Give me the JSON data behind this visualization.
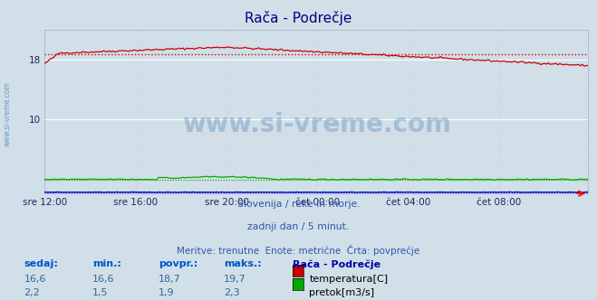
{
  "title": "Rača - Podrečje",
  "bg_color": "#d0dfe8",
  "title_color": "#000080",
  "title_fontsize": 11,
  "ylim": [
    0,
    22
  ],
  "num_points": 288,
  "temp_avg": 18.7,
  "temp_color": "#cc0000",
  "flow_avg": 1.9,
  "flow_color": "#00aa00",
  "height_color": "#0000cc",
  "height_avg": 0.18,
  "xtick_labels": [
    "sre 12:00",
    "sre 16:00",
    "sre 20:00",
    "čet 00:00",
    "čet 04:00",
    "čet 08:00"
  ],
  "xtick_positions": [
    0,
    48,
    96,
    144,
    192,
    240
  ],
  "watermark": "www.si-vreme.com",
  "subtitle1": "Slovenija / reke in morje.",
  "subtitle2": "zadnji dan / 5 minut.",
  "subtitle3": "Meritve: trenutne  Enote: metrične  Črta: povprečje",
  "subtitle_color": "#3355aa",
  "table_headers": [
    "sedaj:",
    "min.:",
    "povpr.:",
    "maks.:"
  ],
  "temp_row": [
    "16,6",
    "16,6",
    "18,7",
    "19,7"
  ],
  "flow_row": [
    "2,2",
    "1,5",
    "1,9",
    "2,3"
  ],
  "table_header_color": "#0055cc",
  "table_value_color": "#336699",
  "legend_title": "Rača - Podrečje",
  "legend_color": "#0000aa",
  "temp_label": "temperatura[C]",
  "flow_label": "pretok[m3/s]"
}
